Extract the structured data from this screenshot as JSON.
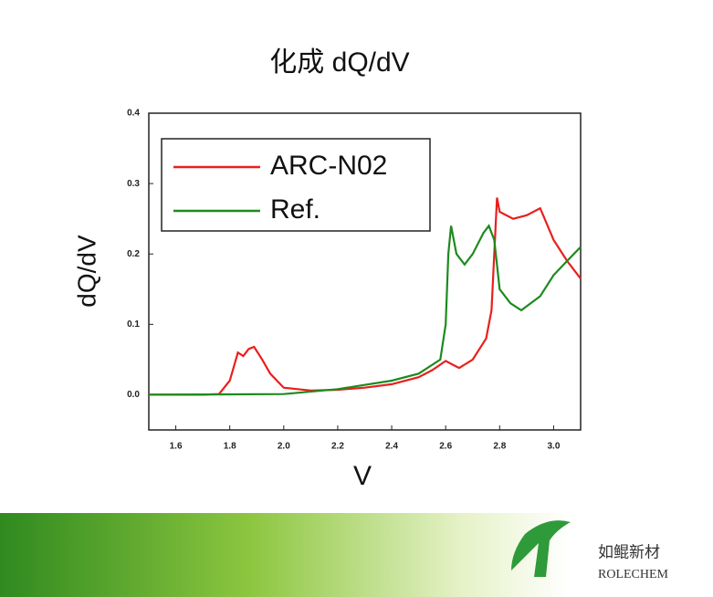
{
  "chart_data": {
    "type": "line",
    "title": "化成 dQ/dV",
    "x_label": "V",
    "y_label": "dQ/dV",
    "xlim": [
      1.5,
      3.1
    ],
    "ylim": [
      -0.05,
      0.4
    ],
    "xticks": [
      1.6,
      1.8,
      {
        "value": 2,
        "label": "2.0"
      },
      2.2,
      2.4,
      2.6,
      2.8,
      {
        "value": 3,
        "label": "3.0"
      }
    ],
    "yticks": [
      {
        "value": 0,
        "label": "0.0"
      },
      0.1,
      0.2,
      0.3,
      0.4
    ],
    "legend": "upper left",
    "series": [
      {
        "name": "ARC-N02",
        "color": "#e8201c",
        "x": [
          1.5,
          1.7,
          1.76,
          1.8,
          1.83,
          1.85,
          1.87,
          1.89,
          1.92,
          1.95,
          2.0,
          2.1,
          2.2,
          2.3,
          2.4,
          2.5,
          2.55,
          2.6,
          2.63,
          2.65,
          2.7,
          2.75,
          2.77,
          2.78,
          2.79,
          2.8,
          2.85,
          2.9,
          2.95,
          3.0,
          3.05,
          3.1
        ],
        "values": [
          0,
          0,
          0.001,
          0.02,
          0.06,
          0.055,
          0.065,
          0.068,
          0.05,
          0.03,
          0.01,
          0.006,
          0.007,
          0.01,
          0.015,
          0.025,
          0.035,
          0.048,
          0.042,
          0.038,
          0.05,
          0.08,
          0.12,
          0.2,
          0.28,
          0.26,
          0.25,
          0.255,
          0.265,
          0.22,
          0.19,
          0.165
        ]
      },
      {
        "name": "Ref.",
        "color": "#1e8a1e",
        "x": [
          1.5,
          2.0,
          2.2,
          2.4,
          2.5,
          2.58,
          2.6,
          2.61,
          2.62,
          2.64,
          2.67,
          2.7,
          2.74,
          2.76,
          2.78,
          2.8,
          2.84,
          2.88,
          2.95,
          3.0,
          3.05,
          3.1
        ],
        "values": [
          0,
          0.001,
          0.008,
          0.02,
          0.03,
          0.05,
          0.1,
          0.2,
          0.24,
          0.2,
          0.185,
          0.2,
          0.23,
          0.24,
          0.22,
          0.15,
          0.13,
          0.12,
          0.14,
          0.17,
          0.19,
          0.21
        ]
      }
    ]
  },
  "brand": {
    "name_cn": "如鲲新材",
    "name_en": "ROLECHEM"
  }
}
